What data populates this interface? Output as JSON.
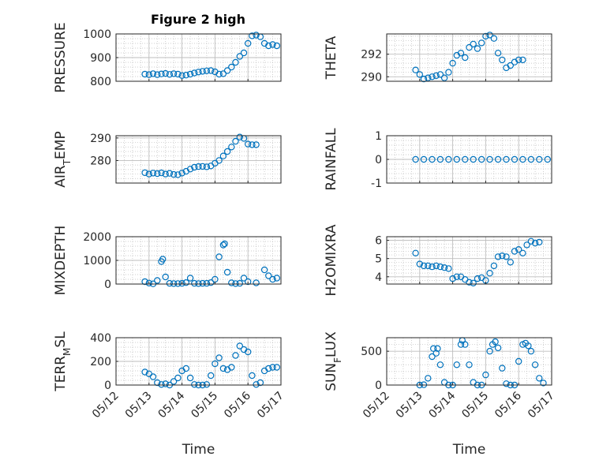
{
  "figure_title": "Figure 2 high",
  "colors": {
    "marker": "#0072BD",
    "axis": "#262626",
    "grid": "#bdbdbd"
  },
  "chart_data": [
    {
      "type": "scatter",
      "title": "Figure 2 high",
      "ylabel": "PRESSURE",
      "ylabel_sub": "",
      "ylim": [
        800,
        1000
      ],
      "yticks": [
        "800",
        "900",
        "1000"
      ],
      "ytick_values": [
        800,
        900,
        1000
      ],
      "x_time": [
        [
          "05/12 21:00",
          830
        ],
        [
          "05/13 00:00",
          828
        ],
        [
          "05/13 03:00",
          832
        ],
        [
          "05/13 06:00",
          828
        ],
        [
          "05/13 09:00",
          831
        ],
        [
          "05/13 12:00",
          833
        ],
        [
          "05/13 15:00",
          829
        ],
        [
          "05/13 18:00",
          832
        ],
        [
          "05/13 21:00",
          830
        ],
        [
          "05/14 00:00",
          824
        ],
        [
          "05/14 03:00",
          826
        ],
        [
          "05/14 06:00",
          830
        ],
        [
          "05/14 09:00",
          835
        ],
        [
          "05/14 12:00",
          839
        ],
        [
          "05/14 15:00",
          842
        ],
        [
          "05/14 18:00",
          844
        ],
        [
          "05/14 21:00",
          845
        ],
        [
          "05/15 00:00",
          840
        ],
        [
          "05/15 03:00",
          830
        ],
        [
          "05/15 06:00",
          832
        ],
        [
          "05/15 09:00",
          845
        ],
        [
          "05/15 12:00",
          860
        ],
        [
          "05/15 15:00",
          880
        ],
        [
          "05/15 18:00",
          905
        ],
        [
          "05/15 21:00",
          920
        ],
        [
          "05/16 00:00",
          960
        ],
        [
          "05/16 03:00",
          992
        ],
        [
          "05/16 06:00",
          995
        ],
        [
          "05/16 09:00",
          988
        ],
        [
          "05/16 12:00",
          960
        ],
        [
          "05/16 15:00",
          950
        ],
        [
          "05/16 18:00",
          955
        ],
        [
          "05/16 21:00",
          950
        ]
      ]
    },
    {
      "type": "scatter",
      "title": "",
      "ylabel": "THETA",
      "ylabel_sub": "",
      "ylim": [
        289.6,
        293.8
      ],
      "yticks": [
        "290",
        "292"
      ],
      "ytick_values": [
        290,
        292
      ],
      "x_time": [
        [
          "05/12 21:00",
          290.6
        ],
        [
          "05/13 00:00",
          290.2
        ],
        [
          "05/13 03:00",
          289.8
        ],
        [
          "05/13 06:00",
          289.9
        ],
        [
          "05/13 09:00",
          290.0
        ],
        [
          "05/13 12:00",
          290.1
        ],
        [
          "05/13 15:00",
          290.2
        ],
        [
          "05/13 18:00",
          289.9
        ],
        [
          "05/13 21:00",
          290.4
        ],
        [
          "05/14 00:00",
          291.2
        ],
        [
          "05/14 03:00",
          291.9
        ],
        [
          "05/14 06:00",
          292.1
        ],
        [
          "05/14 09:00",
          291.7
        ],
        [
          "05/14 12:00",
          292.6
        ],
        [
          "05/14 15:00",
          292.9
        ],
        [
          "05/14 18:00",
          292.5
        ],
        [
          "05/14 21:00",
          293.0
        ],
        [
          "05/15 00:00",
          293.6
        ],
        [
          "05/15 03:00",
          293.7
        ],
        [
          "05/15 06:00",
          293.4
        ],
        [
          "05/15 09:00",
          292.1
        ],
        [
          "05/15 12:00",
          291.5
        ],
        [
          "05/15 15:00",
          290.8
        ],
        [
          "05/15 18:00",
          291.0
        ],
        [
          "05/15 21:00",
          291.3
        ],
        [
          "05/16 00:00",
          291.5
        ],
        [
          "05/16 03:00",
          291.5
        ]
      ]
    },
    {
      "type": "scatter",
      "title": "",
      "ylabel": "AIR",
      "ylabel_sub": "T",
      "ylabel_rest": "EMP",
      "ylim": [
        270,
        291
      ],
      "yticks": [
        "280",
        "290"
      ],
      "ytick_values": [
        280,
        290
      ],
      "x_time": [
        [
          "05/12 21:00",
          274.6
        ],
        [
          "05/13 00:00",
          274.0
        ],
        [
          "05/13 03:00",
          274.4
        ],
        [
          "05/13 06:00",
          274.2
        ],
        [
          "05/13 09:00",
          274.5
        ],
        [
          "05/13 12:00",
          274.0
        ],
        [
          "05/13 15:00",
          274.3
        ],
        [
          "05/13 18:00",
          273.8
        ],
        [
          "05/13 21:00",
          273.7
        ],
        [
          "05/14 00:00",
          274.4
        ],
        [
          "05/14 03:00",
          275.2
        ],
        [
          "05/14 06:00",
          276.2
        ],
        [
          "05/14 09:00",
          277.0
        ],
        [
          "05/14 12:00",
          277.3
        ],
        [
          "05/14 15:00",
          277.4
        ],
        [
          "05/14 18:00",
          277.2
        ],
        [
          "05/14 21:00",
          277.6
        ],
        [
          "05/15 00:00",
          278.8
        ],
        [
          "05/15 03:00",
          280.0
        ],
        [
          "05/15 06:00",
          282.0
        ],
        [
          "05/15 09:00",
          284.0
        ],
        [
          "05/15 12:00",
          286.0
        ],
        [
          "05/15 15:00",
          288.5
        ],
        [
          "05/15 18:00",
          290.4
        ],
        [
          "05/15 21:00",
          289.8
        ],
        [
          "05/16 00:00",
          287.3
        ],
        [
          "05/16 03:00",
          287.0
        ],
        [
          "05/16 06:00",
          287.0
        ]
      ]
    },
    {
      "type": "scatter",
      "title": "",
      "ylabel": "RAINFALL",
      "ylabel_sub": "",
      "ylim": [
        -1,
        1
      ],
      "yticks": [
        "-1",
        "0",
        "1"
      ],
      "ytick_values": [
        -1,
        0,
        1
      ],
      "x_time": [
        [
          "05/12 21:00",
          0
        ],
        [
          "05/13 03:00",
          0
        ],
        [
          "05/13 09:00",
          0
        ],
        [
          "05/13 15:00",
          0
        ],
        [
          "05/13 21:00",
          0
        ],
        [
          "05/14 03:00",
          0
        ],
        [
          "05/14 09:00",
          0
        ],
        [
          "05/14 15:00",
          0
        ],
        [
          "05/14 21:00",
          0
        ],
        [
          "05/15 03:00",
          0
        ],
        [
          "05/15 09:00",
          0
        ],
        [
          "05/15 15:00",
          0
        ],
        [
          "05/15 21:00",
          0
        ],
        [
          "05/16 03:00",
          0
        ],
        [
          "05/16 09:00",
          0
        ],
        [
          "05/16 15:00",
          0
        ],
        [
          "05/16 21:00",
          0
        ]
      ]
    },
    {
      "type": "scatter",
      "title": "",
      "ylabel": "MIXDEPTH",
      "ylabel_sub": "",
      "ylim": [
        0,
        2000
      ],
      "yticks": [
        "0",
        "1000",
        "2000"
      ],
      "ytick_values": [
        0,
        1000,
        2000
      ],
      "x_time": [
        [
          "05/12 21:00",
          100
        ],
        [
          "05/13 00:00",
          40
        ],
        [
          "05/13 03:00",
          10
        ],
        [
          "05/13 06:00",
          150
        ],
        [
          "05/13 09:00",
          950
        ],
        [
          "05/13 10:00",
          1050
        ],
        [
          "05/13 12:00",
          300
        ],
        [
          "05/13 15:00",
          30
        ],
        [
          "05/13 18:00",
          20
        ],
        [
          "05/13 21:00",
          20
        ],
        [
          "05/14 00:00",
          30
        ],
        [
          "05/14 03:00",
          60
        ],
        [
          "05/14 06:00",
          250
        ],
        [
          "05/14 09:00",
          30
        ],
        [
          "05/14 12:00",
          20
        ],
        [
          "05/14 15:00",
          30
        ],
        [
          "05/14 18:00",
          30
        ],
        [
          "05/14 21:00",
          60
        ],
        [
          "05/15 00:00",
          200
        ],
        [
          "05/15 03:00",
          1150
        ],
        [
          "05/15 06:00",
          1650
        ],
        [
          "05/15 07:00",
          1700
        ],
        [
          "05/15 09:00",
          500
        ],
        [
          "05/15 12:00",
          50
        ],
        [
          "05/15 15:00",
          20
        ],
        [
          "05/15 18:00",
          30
        ],
        [
          "05/15 21:00",
          250
        ],
        [
          "05/16 00:00",
          100
        ],
        [
          "05/16 06:00",
          50
        ],
        [
          "05/16 12:00",
          600
        ],
        [
          "05/16 15:00",
          350
        ],
        [
          "05/16 18:00",
          200
        ],
        [
          "05/16 21:00",
          250
        ]
      ]
    },
    {
      "type": "scatter",
      "title": "",
      "ylabel": "H2OMIXRA",
      "ylabel_sub": "",
      "ylim": [
        3.6,
        6.2
      ],
      "yticks": [
        "4",
        "5",
        "6"
      ],
      "ytick_values": [
        4,
        5,
        6
      ],
      "x_time": [
        [
          "05/12 21:00",
          5.3
        ],
        [
          "05/13 00:00",
          4.7
        ],
        [
          "05/13 03:00",
          4.6
        ],
        [
          "05/13 06:00",
          4.6
        ],
        [
          "05/13 09:00",
          4.55
        ],
        [
          "05/13 12:00",
          4.6
        ],
        [
          "05/13 15:00",
          4.55
        ],
        [
          "05/13 18:00",
          4.5
        ],
        [
          "05/13 21:00",
          4.45
        ],
        [
          "05/14 00:00",
          3.9
        ],
        [
          "05/14 03:00",
          4.0
        ],
        [
          "05/14 06:00",
          4.0
        ],
        [
          "05/14 09:00",
          3.85
        ],
        [
          "05/14 12:00",
          3.7
        ],
        [
          "05/14 15:00",
          3.65
        ],
        [
          "05/14 18:00",
          3.9
        ],
        [
          "05/14 21:00",
          3.95
        ],
        [
          "05/15 00:00",
          3.8
        ],
        [
          "05/15 03:00",
          4.2
        ],
        [
          "05/15 06:00",
          4.6
        ],
        [
          "05/15 09:00",
          5.1
        ],
        [
          "05/15 12:00",
          5.15
        ],
        [
          "05/15 15:00",
          5.1
        ],
        [
          "05/15 18:00",
          4.8
        ],
        [
          "05/15 21:00",
          5.4
        ],
        [
          "05/16 00:00",
          5.5
        ],
        [
          "05/16 03:00",
          5.3
        ],
        [
          "05/16 06:00",
          5.75
        ],
        [
          "05/16 09:00",
          5.95
        ],
        [
          "05/16 12:00",
          5.85
        ],
        [
          "05/16 15:00",
          5.9
        ]
      ]
    },
    {
      "type": "scatter",
      "title": "",
      "ylabel": "TERR",
      "ylabel_sub": "M",
      "ylabel_rest": "SL",
      "ylim": [
        0,
        400
      ],
      "yticks": [
        "0",
        "200",
        "400"
      ],
      "ytick_values": [
        0,
        200,
        400
      ],
      "xlabel": "Time",
      "x_time": [
        [
          "05/12 21:00",
          110
        ],
        [
          "05/13 00:00",
          95
        ],
        [
          "05/13 03:00",
          70
        ],
        [
          "05/13 06:00",
          20
        ],
        [
          "05/13 09:00",
          5
        ],
        [
          "05/13 12:00",
          10
        ],
        [
          "05/13 15:00",
          0
        ],
        [
          "05/13 18:00",
          30
        ],
        [
          "05/13 21:00",
          60
        ],
        [
          "05/14 00:00",
          120
        ],
        [
          "05/14 03:00",
          140
        ],
        [
          "05/14 06:00",
          60
        ],
        [
          "05/14 09:00",
          5
        ],
        [
          "05/14 12:00",
          0
        ],
        [
          "05/14 15:00",
          0
        ],
        [
          "05/14 18:00",
          5
        ],
        [
          "05/14 21:00",
          80
        ],
        [
          "05/15 00:00",
          180
        ],
        [
          "05/15 03:00",
          230
        ],
        [
          "05/15 06:00",
          140
        ],
        [
          "05/15 09:00",
          130
        ],
        [
          "05/15 12:00",
          150
        ],
        [
          "05/15 15:00",
          250
        ],
        [
          "05/15 18:00",
          330
        ],
        [
          "05/15 21:00",
          300
        ],
        [
          "05/16 00:00",
          280
        ],
        [
          "05/16 03:00",
          80
        ],
        [
          "05/16 06:00",
          5
        ],
        [
          "05/16 09:00",
          20
        ],
        [
          "05/16 12:00",
          120
        ],
        [
          "05/16 15:00",
          140
        ],
        [
          "05/16 18:00",
          150
        ],
        [
          "05/16 21:00",
          150
        ]
      ]
    },
    {
      "type": "scatter",
      "title": "",
      "ylabel": "SUN",
      "ylabel_sub": "F",
      "ylabel_rest": "LUX",
      "ylim": [
        0,
        700
      ],
      "yticks": [
        "0",
        "500"
      ],
      "ytick_values": [
        0,
        500
      ],
      "xlabel": "Time",
      "x_time": [
        [
          "05/13 00:00",
          0
        ],
        [
          "05/13 03:00",
          5
        ],
        [
          "05/13 06:00",
          100
        ],
        [
          "05/13 09:00",
          420
        ],
        [
          "05/13 10:00",
          540
        ],
        [
          "05/13 12:00",
          470
        ],
        [
          "05/13 13:00",
          540
        ],
        [
          "05/13 15:00",
          300
        ],
        [
          "05/13 18:00",
          40
        ],
        [
          "05/13 21:00",
          0
        ],
        [
          "05/14 00:00",
          0
        ],
        [
          "05/14 03:00",
          300
        ],
        [
          "05/14 06:00",
          600
        ],
        [
          "05/14 07:00",
          660
        ],
        [
          "05/14 09:00",
          600
        ],
        [
          "05/14 12:00",
          300
        ],
        [
          "05/14 15:00",
          40
        ],
        [
          "05/14 18:00",
          0
        ],
        [
          "05/14 21:00",
          0
        ],
        [
          "05/15 00:00",
          150
        ],
        [
          "05/15 03:00",
          500
        ],
        [
          "05/15 05:00",
          600
        ],
        [
          "05/15 07:00",
          640
        ],
        [
          "05/15 09:00",
          550
        ],
        [
          "05/15 12:00",
          250
        ],
        [
          "05/15 15:00",
          20
        ],
        [
          "05/15 18:00",
          0
        ],
        [
          "05/15 21:00",
          0
        ],
        [
          "05/16 00:00",
          350
        ],
        [
          "05/16 03:00",
          600
        ],
        [
          "05/16 05:00",
          620
        ],
        [
          "05/16 07:00",
          580
        ],
        [
          "05/16 09:00",
          500
        ],
        [
          "05/16 12:00",
          300
        ],
        [
          "05/16 15:00",
          100
        ],
        [
          "05/16 18:00",
          30
        ]
      ]
    }
  ],
  "xaxis": {
    "ticks": [
      "05/12",
      "05/13",
      "05/14",
      "05/15",
      "05/16",
      "05/17"
    ],
    "range": [
      "05/12 00:00",
      "05/17 00:00"
    ]
  }
}
